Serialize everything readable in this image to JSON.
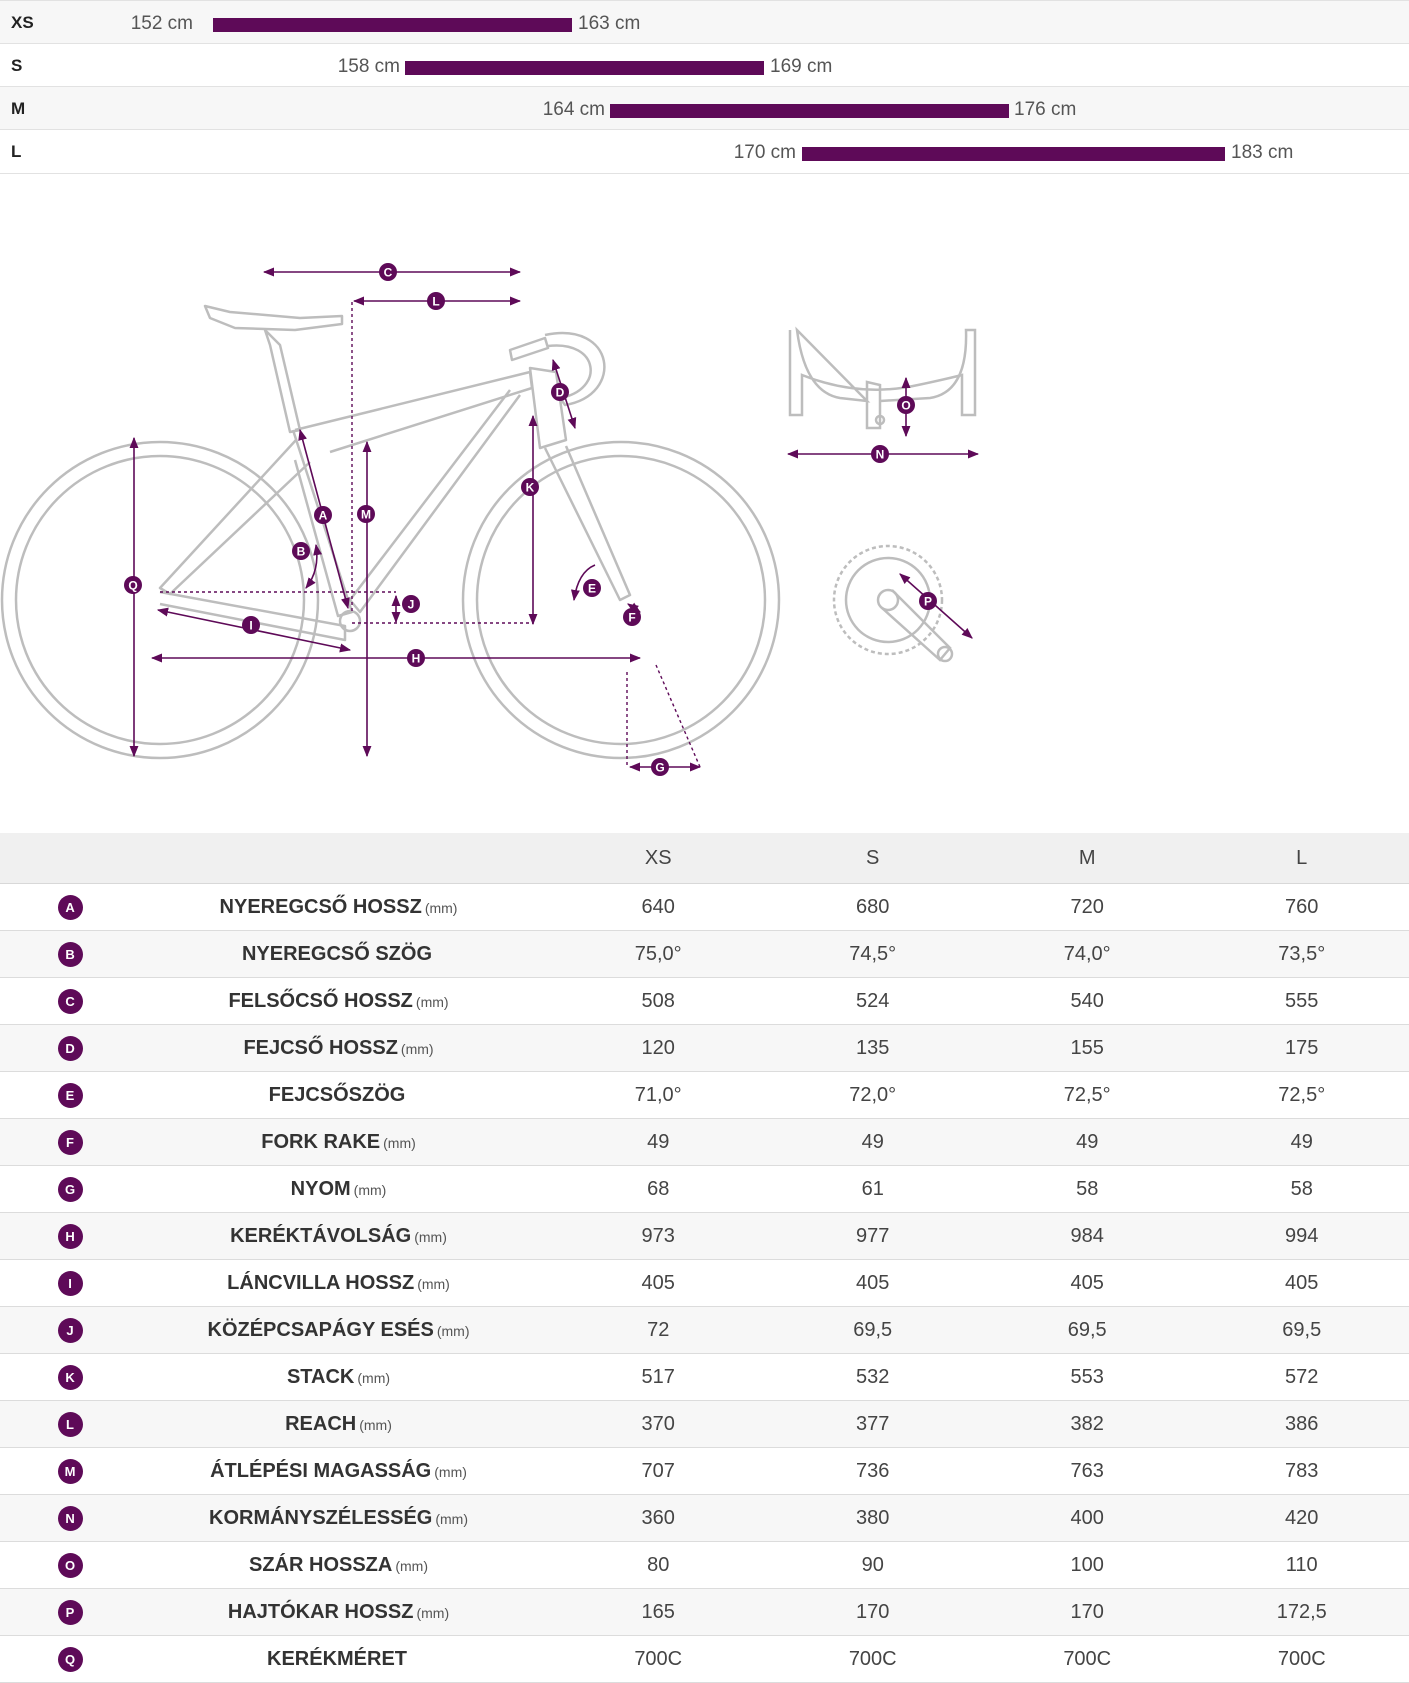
{
  "size_chart": {
    "rows": [
      {
        "size": "XS",
        "min": "152 cm",
        "max": "163 cm"
      },
      {
        "size": "S",
        "min": "158 cm",
        "max": "169 cm"
      },
      {
        "size": "M",
        "min": "164 cm",
        "max": "176 cm"
      },
      {
        "size": "L",
        "min": "170 cm",
        "max": "183 cm"
      }
    ],
    "bar_color": "#5e0a58"
  },
  "diagram": {
    "labels": [
      "A",
      "B",
      "C",
      "D",
      "E",
      "F",
      "G",
      "H",
      "I",
      "J",
      "K",
      "L",
      "M",
      "N",
      "O",
      "P",
      "Q"
    ],
    "accent_color": "#5e0a58",
    "line_color": "#bbbbbb"
  },
  "table": {
    "columns": [
      "XS",
      "S",
      "M",
      "L"
    ],
    "rows": [
      {
        "letter": "A",
        "name": "NYEREGCSŐ HOSSZ",
        "unit": "(mm)",
        "values": [
          "640",
          "680",
          "720",
          "760"
        ]
      },
      {
        "letter": "B",
        "name": "NYEREGCSŐ SZÖG",
        "unit": "",
        "values": [
          "75,0°",
          "74,5°",
          "74,0°",
          "73,5°"
        ]
      },
      {
        "letter": "C",
        "name": "FELSŐCSŐ HOSSZ",
        "unit": "(mm)",
        "values": [
          "508",
          "524",
          "540",
          "555"
        ]
      },
      {
        "letter": "D",
        "name": "FEJCSŐ HOSSZ",
        "unit": "(mm)",
        "values": [
          "120",
          "135",
          "155",
          "175"
        ]
      },
      {
        "letter": "E",
        "name": "FEJCSŐSZÖG",
        "unit": "",
        "values": [
          "71,0°",
          "72,0°",
          "72,5°",
          "72,5°"
        ]
      },
      {
        "letter": "F",
        "name": "FORK RAKE",
        "unit": "(mm)",
        "values": [
          "49",
          "49",
          "49",
          "49"
        ]
      },
      {
        "letter": "G",
        "name": "NYOM",
        "unit": "(mm)",
        "values": [
          "68",
          "61",
          "58",
          "58"
        ]
      },
      {
        "letter": "H",
        "name": "KERÉKTÁVOLSÁG",
        "unit": "(mm)",
        "values": [
          "973",
          "977",
          "984",
          "994"
        ]
      },
      {
        "letter": "I",
        "name": "LÁNCVILLA HOSSZ",
        "unit": "(mm)",
        "values": [
          "405",
          "405",
          "405",
          "405"
        ]
      },
      {
        "letter": "J",
        "name": "KÖZÉPCSAPÁGY ESÉS",
        "unit": "(mm)",
        "values": [
          "72",
          "69,5",
          "69,5",
          "69,5"
        ]
      },
      {
        "letter": "K",
        "name": "STACK",
        "unit": "(mm)",
        "values": [
          "517",
          "532",
          "553",
          "572"
        ]
      },
      {
        "letter": "L",
        "name": "REACH",
        "unit": "(mm)",
        "values": [
          "370",
          "377",
          "382",
          "386"
        ]
      },
      {
        "letter": "M",
        "name": "ÁTLÉPÉSI MAGASSÁG",
        "unit": "(mm)",
        "values": [
          "707",
          "736",
          "763",
          "783"
        ]
      },
      {
        "letter": "N",
        "name": "KORMÁNYSZÉLESSÉG",
        "unit": "(mm)",
        "values": [
          "360",
          "380",
          "400",
          "420"
        ]
      },
      {
        "letter": "O",
        "name": "SZÁR HOSSZA",
        "unit": "(mm)",
        "values": [
          "80",
          "90",
          "100",
          "110"
        ]
      },
      {
        "letter": "P",
        "name": "HAJTÓKAR HOSSZ",
        "unit": "(mm)",
        "values": [
          "165",
          "170",
          "170",
          "172,5"
        ]
      },
      {
        "letter": "Q",
        "name": "KERÉKMÉRET",
        "unit": "",
        "values": [
          "700C",
          "700C",
          "700C",
          "700C"
        ]
      }
    ]
  }
}
